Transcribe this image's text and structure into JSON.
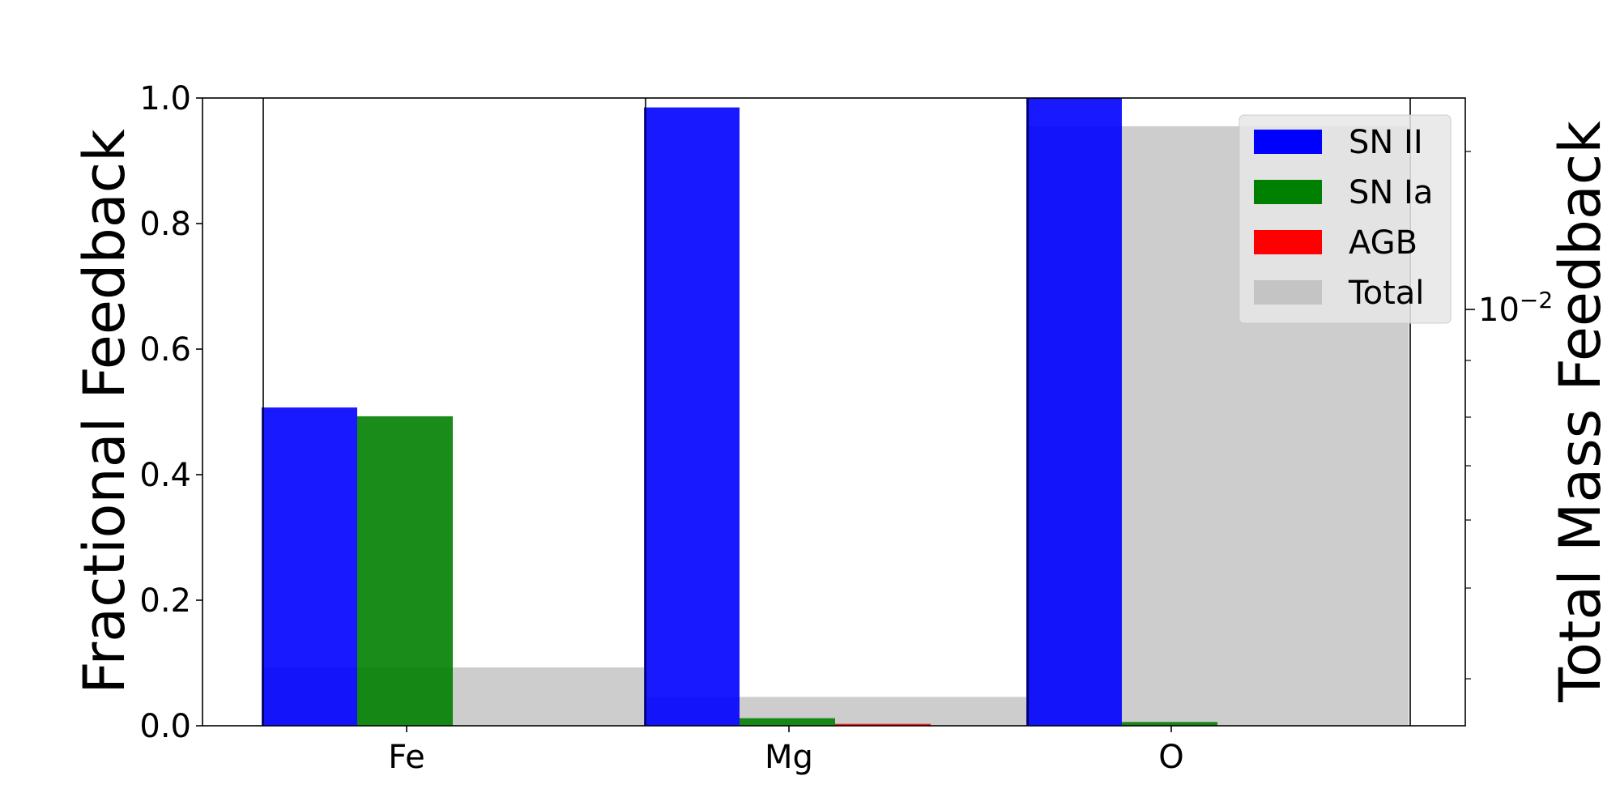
{
  "chart_data": {
    "type": "bar",
    "categories": [
      "Fe",
      "Mg",
      "O"
    ],
    "ylabel": "Fractional Feedback",
    "ylim": [
      0,
      1.0
    ],
    "yticks": [
      "0.0",
      "0.2",
      "0.4",
      "0.6",
      "0.8",
      "1.0"
    ],
    "y2label": "Total Mass Feedback",
    "y2scale": "log",
    "y2_tick_base": "10",
    "y2_tick_exp": "−2",
    "series": [
      {
        "name": "SN II",
        "values": [
          0.507,
          0.985,
          1.0
        ],
        "color": "#0000ff"
      },
      {
        "name": "SN Ia",
        "values": [
          0.493,
          0.012,
          0.006
        ],
        "color": "#008000"
      },
      {
        "name": "AGB",
        "values": [
          0.0,
          0.003,
          0.0
        ],
        "color": "#ff0000"
      }
    ],
    "total": {
      "name": "Total",
      "values": [
        0.093,
        0.046,
        0.955
      ],
      "color": "#c0c0c0"
    },
    "legend_position": "top-right",
    "grid": false
  }
}
